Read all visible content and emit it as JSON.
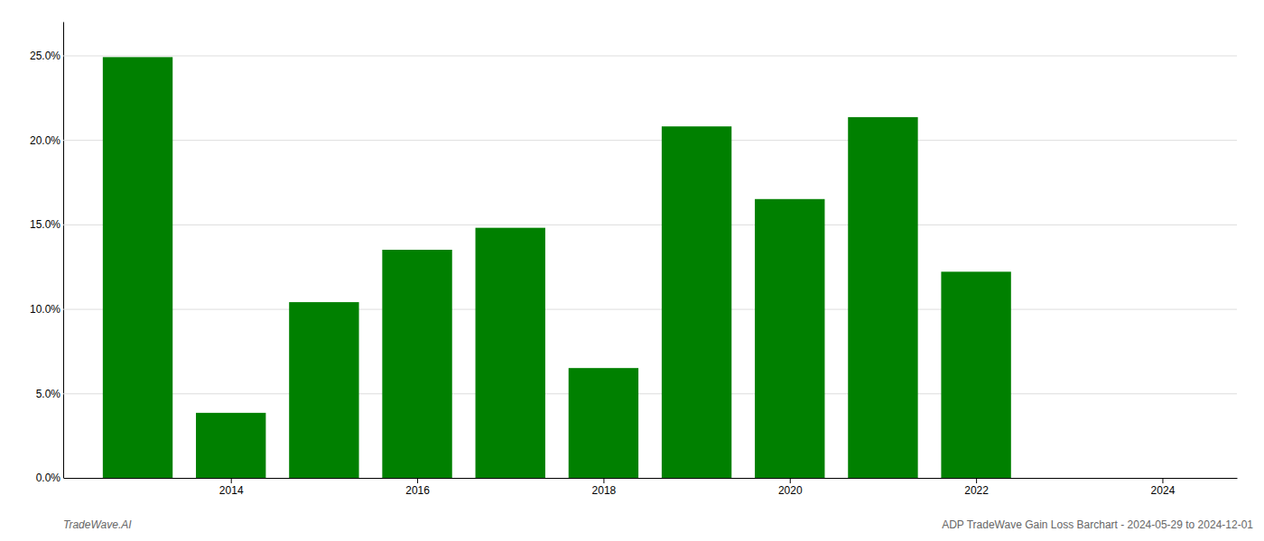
{
  "chart_data": {
    "type": "bar",
    "x": [
      2013,
      2014,
      2015,
      2016,
      2017,
      2018,
      2019,
      2020,
      2021,
      2022,
      2023
    ],
    "values": [
      0.249,
      0.0385,
      0.104,
      0.135,
      0.148,
      0.065,
      0.208,
      0.165,
      0.2135,
      0.122,
      0.0
    ],
    "color": "#008000",
    "xlim": [
      2012.2,
      2024.8
    ],
    "xticks": [
      2014,
      2016,
      2018,
      2020,
      2022,
      2024
    ],
    "ylim": [
      0,
      0.27
    ],
    "yticks": [
      {
        "value": 0.0,
        "label": "0.0%"
      },
      {
        "value": 0.05,
        "label": "5.0%"
      },
      {
        "value": 0.1,
        "label": "10.0%"
      },
      {
        "value": 0.15,
        "label": "15.0%"
      },
      {
        "value": 0.2,
        "label": "20.0%"
      },
      {
        "value": 0.25,
        "label": "25.0%"
      }
    ],
    "grid": true,
    "annotations": [
      "TradeWave.AI",
      "ADP TradeWave Gain Loss Barchart - 2024-05-29 to 2024-12-01"
    ]
  }
}
